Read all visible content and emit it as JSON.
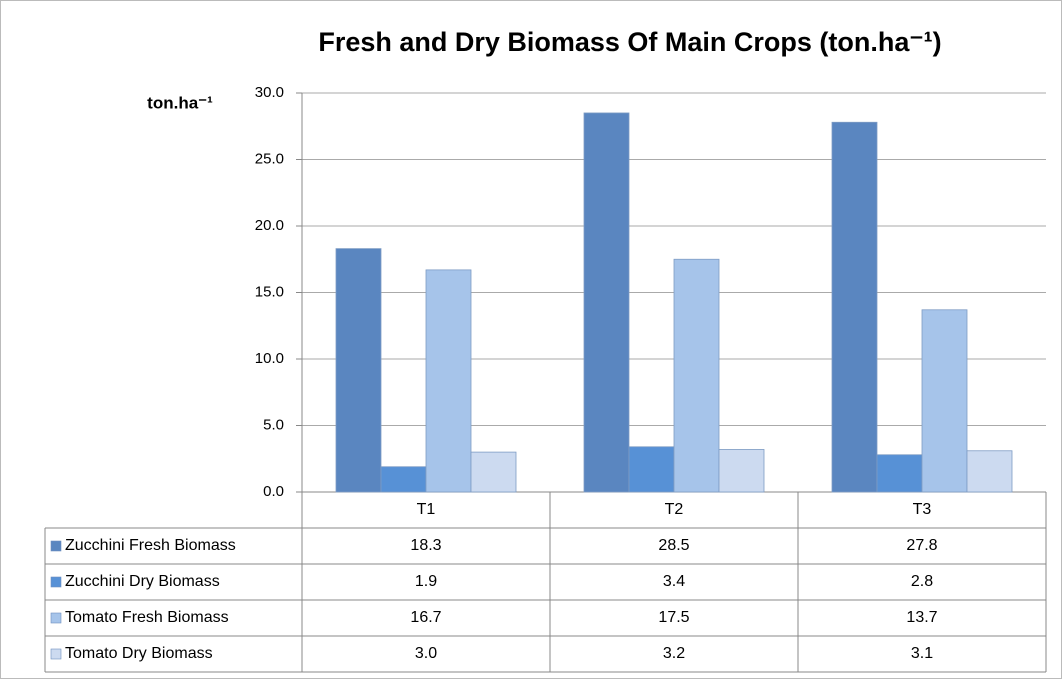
{
  "chart_data": {
    "type": "bar",
    "title": "Fresh and Dry Biomass Of Main Crops (ton.ha⁻¹)",
    "y_label": "ton.ha⁻¹",
    "categories": [
      "T1",
      "T2",
      "T3"
    ],
    "series": [
      {
        "name": "Zucchini Fresh Biomass",
        "color": "#5a86c0",
        "values": [
          18.3,
          28.5,
          27.8
        ],
        "value_labels": [
          "18.3",
          "28.5",
          "27.8"
        ]
      },
      {
        "name": "Zucchini Dry Biomass",
        "color": "#5791d6",
        "values": [
          1.9,
          3.4,
          2.8
        ],
        "value_labels": [
          "1.9",
          "3.4",
          "2.8"
        ]
      },
      {
        "name": "Tomato Fresh Biomass",
        "color": "#a6c4ea",
        "values": [
          16.7,
          17.5,
          13.7
        ],
        "value_labels": [
          "16.7",
          "17.5",
          "13.7"
        ]
      },
      {
        "name": "Tomato Dry Biomass",
        "color": "#ccdaf0",
        "values": [
          3.0,
          3.2,
          3.1
        ],
        "value_labels": [
          "3.0",
          "3.2",
          "3.1"
        ]
      }
    ],
    "ylim": [
      0,
      30
    ],
    "yticks": [
      {
        "value": 0,
        "label": "0.0"
      },
      {
        "value": 5,
        "label": "5.0"
      },
      {
        "value": 10,
        "label": "10.0"
      },
      {
        "value": 15,
        "label": "15.0"
      },
      {
        "value": 20,
        "label": "20.0"
      },
      {
        "value": 25,
        "label": "25.0"
      },
      {
        "value": 30,
        "label": "30.0"
      }
    ],
    "grid": true
  }
}
